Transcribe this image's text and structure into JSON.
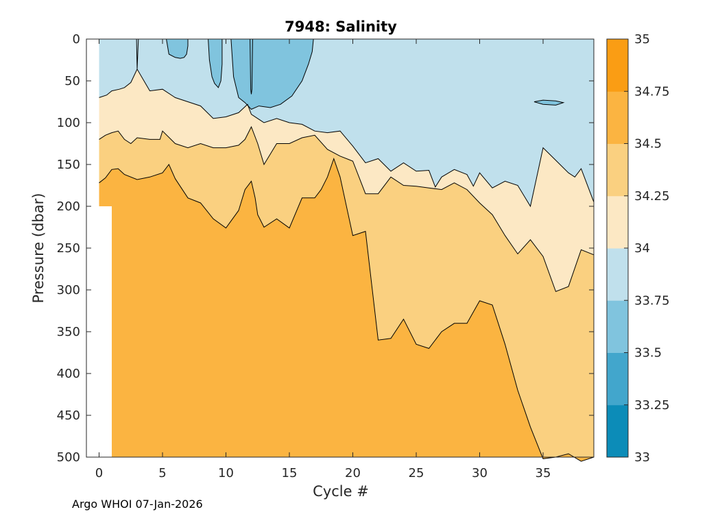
{
  "chart_data": {
    "type": "contourf",
    "title": "7948:  Salinity",
    "xlabel": "Cycle #",
    "ylabel": "Pressure (dbar)",
    "xlim": [
      -1,
      39
    ],
    "ylim": [
      500,
      0
    ],
    "xticks": [
      0,
      5,
      10,
      15,
      20,
      25,
      30,
      35
    ],
    "yticks": [
      0,
      50,
      100,
      150,
      200,
      250,
      300,
      350,
      400,
      450,
      500
    ],
    "colorbar": {
      "levels": [
        33,
        33.25,
        33.5,
        33.75,
        34,
        34.25,
        34.5,
        34.75,
        35
      ],
      "tick_labels": [
        "33",
        "33.25",
        "33.5",
        "33.75",
        "34",
        "34.25",
        "34.5",
        "34.75",
        "35"
      ],
      "colors": [
        "#0c8cb8",
        "#42a6cc",
        "#80c4de",
        "#c0e0ec",
        "#fce8c4",
        "#fad080",
        "#fbb441",
        "#fa9d14"
      ]
    },
    "data_extent": {
      "x_start": 0,
      "x_end": 39,
      "p_start": 0,
      "p_end": 500
    },
    "missing_region": {
      "x_from": 0,
      "x_to": 1,
      "p_from": 200,
      "p_to": 500
    },
    "isohalines": [
      {
        "level": 34,
        "x": [
          0,
          0.6,
          1,
          1.6,
          2,
          2.5,
          3,
          4,
          5,
          6,
          7,
          8,
          9,
          10,
          11,
          11.7,
          12,
          12.5,
          13,
          14,
          15,
          16,
          17,
          18,
          19,
          20,
          21,
          22,
          23,
          24,
          25,
          26,
          26.5,
          27,
          28,
          29,
          29.5,
          30,
          31,
          32,
          33,
          34,
          35,
          36,
          37,
          37.5,
          38,
          39
        ],
        "p": [
          70,
          67,
          62,
          60,
          58,
          52,
          36,
          62,
          60,
          70,
          75,
          80,
          95,
          93,
          88,
          78,
          90,
          95,
          100,
          95,
          100,
          102,
          110,
          112,
          110,
          128,
          148,
          143,
          158,
          148,
          158,
          157,
          177,
          165,
          156,
          162,
          176,
          160,
          178,
          170,
          175,
          200,
          130,
          145,
          160,
          165,
          155,
          195
        ]
      },
      {
        "level": 34.25,
        "x": [
          0,
          0.5,
          1,
          1.5,
          2,
          2.5,
          3,
          4,
          4.8,
          5,
          6,
          7,
          8,
          9,
          10,
          11,
          11.5,
          12,
          12.5,
          13,
          14,
          15,
          16,
          17,
          18,
          19,
          20,
          21,
          22,
          23,
          24,
          25,
          26,
          27,
          28,
          29,
          30,
          31,
          32,
          33,
          34,
          35,
          36,
          37,
          38,
          39
        ],
        "p": [
          120,
          115,
          112,
          110,
          120,
          125,
          118,
          120,
          120,
          110,
          125,
          130,
          125,
          130,
          130,
          127,
          120,
          105,
          125,
          150,
          125,
          125,
          118,
          115,
          132,
          140,
          146,
          185,
          185,
          165,
          175,
          176,
          178,
          180,
          172,
          180,
          196,
          210,
          235,
          257,
          240,
          260,
          302,
          296,
          252,
          258
        ]
      },
      {
        "level": 34.5,
        "x": [
          0,
          0.5,
          1,
          1.5,
          2,
          3,
          4,
          5,
          5.5,
          6,
          7,
          8,
          9,
          10,
          11,
          11.5,
          12,
          12.3,
          12.5,
          13,
          14,
          15,
          16,
          17,
          17.5,
          18,
          18.5,
          19,
          20,
          21,
          22,
          23,
          24,
          25,
          26,
          27,
          28,
          29,
          30,
          31,
          32,
          33,
          34,
          35,
          36,
          37,
          38,
          39
        ],
        "p": [
          172,
          166,
          156,
          155,
          162,
          168,
          165,
          160,
          150,
          167,
          190,
          196,
          215,
          226,
          205,
          180,
          170,
          190,
          210,
          225,
          215,
          226,
          190,
          190,
          180,
          165,
          143,
          165,
          235,
          230,
          360,
          358,
          335,
          365,
          370,
          350,
          340,
          340,
          313,
          318,
          365,
          420,
          464,
          502,
          500,
          496,
          505,
          500
        ]
      }
    ],
    "features": [
      {
        "type": "lens",
        "label": "33.5-33.75 patch",
        "x": [
          5.3,
          5.5,
          6.0,
          6.4,
          6.7,
          6.9,
          7.0,
          7.0,
          5.3
        ],
        "p": [
          0,
          18,
          22,
          23,
          22,
          18,
          8,
          0,
          0
        ]
      },
      {
        "type": "lens",
        "label": "33.5-33.75 tongue",
        "x": [
          8.6,
          8.7,
          8.9,
          9.1,
          9.4,
          9.6,
          9.7,
          9.7,
          8.6
        ],
        "p": [
          0,
          25,
          45,
          53,
          58,
          50,
          30,
          0,
          0
        ]
      },
      {
        "type": "lens",
        "label": "33.5-33.75 lens",
        "x": [
          10.4,
          10.6,
          11.0,
          11.5,
          12.0,
          12.6,
          13.5,
          14.3,
          15.2,
          16.0,
          16.5,
          16.8,
          16.9,
          10.4
        ],
        "p": [
          0,
          45,
          70,
          76,
          84,
          80,
          82,
          78,
          68,
          50,
          30,
          15,
          0,
          0
        ]
      },
      {
        "type": "filament",
        "label": "33.75-34 contour",
        "x": [
          11.9,
          11.95,
          12.0,
          12.05,
          12.1
        ],
        "p": [
          0,
          60,
          66,
          60,
          0
        ]
      },
      {
        "type": "filament",
        "label": "34 contour",
        "x": [
          2.95,
          3.0,
          3.1
        ],
        "p": [
          0,
          36,
          0
        ]
      },
      {
        "type": "blob",
        "label": "33.5 eddy",
        "x": [
          34.3,
          35.0,
          36.0,
          36.6,
          36.0,
          35.0,
          34.3
        ],
        "p": [
          75,
          73,
          74,
          76,
          79,
          78,
          75
        ]
      }
    ]
  },
  "footer": {
    "text": "Argo WHOI 07-Jan-2026"
  }
}
